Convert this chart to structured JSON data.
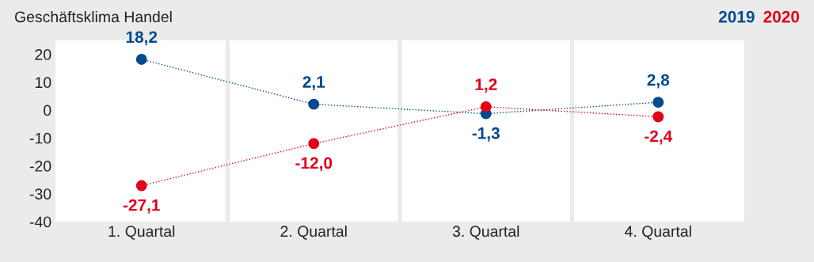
{
  "chart_data": {
    "type": "line",
    "title": "Geschäftsklima Handel",
    "categories": [
      "1. Quartal",
      "2. Quartal",
      "3. Quartal",
      "4. Quartal"
    ],
    "series": [
      {
        "name": "2019",
        "color": "#004a8f",
        "values": [
          18.2,
          2.1,
          -1.3,
          2.8
        ],
        "value_labels": [
          "18,2",
          "2,1",
          "-1,3",
          "2,8"
        ]
      },
      {
        "name": "2020",
        "color": "#e2001a",
        "values": [
          -27.1,
          -12.0,
          1.2,
          -2.4
        ],
        "value_labels": [
          "-27,1",
          "-12,0",
          "1,2",
          "-2,4"
        ]
      }
    ],
    "ylim": [
      -40,
      25
    ],
    "yticks": [
      -40,
      -30,
      -20,
      -10,
      0,
      10,
      20
    ],
    "legend": "top right",
    "marker": "circle",
    "line_style": "dotted",
    "grid": false
  }
}
